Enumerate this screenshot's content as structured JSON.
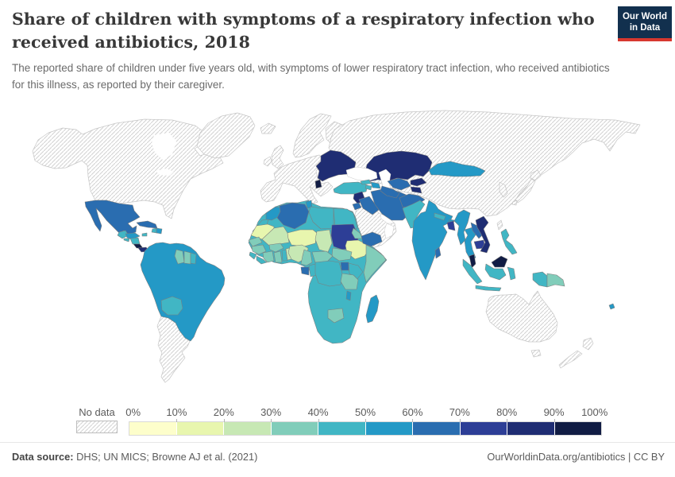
{
  "header": {
    "title": "Share of children with symptoms of a respiratory infection who received antibiotics, 2018",
    "subtitle": "The reported share of children under five years old, with symptoms of lower respiratory tract infection, who received antibiotics for this illness, as reported by their caregiver.",
    "logo_line1": "Our World",
    "logo_line2": "in Data"
  },
  "legend": {
    "no_data_label": "No data",
    "tick_labels": [
      "0%",
      "10%",
      "20%",
      "30%",
      "40%",
      "50%",
      "60%",
      "70%",
      "80%",
      "90%",
      "100%"
    ]
  },
  "footer": {
    "source_label": "Data source:",
    "source_text": " DHS; UN MICS; Browne AJ et al. (2021)",
    "attribution": "OurWorldinData.org/antibiotics | CC BY"
  },
  "chart_data": {
    "type": "choropleth_map",
    "title": "Share of children with symptoms of a respiratory infection who received antibiotics",
    "year": 2018,
    "unit": "%",
    "legend_position": "bottom",
    "scale": {
      "min": 0,
      "max": 100,
      "step": 10,
      "bins": [
        {
          "label": "0-10%",
          "color": "#fdfecb"
        },
        {
          "label": "10-20%",
          "color": "#e8f6ae"
        },
        {
          "label": "20-30%",
          "color": "#c7e8b4"
        },
        {
          "label": "30-40%",
          "color": "#81cdba"
        },
        {
          "label": "40-50%",
          "color": "#41b6c4"
        },
        {
          "label": "50-60%",
          "color": "#2499c6"
        },
        {
          "label": "60-70%",
          "color": "#2a6db0"
        },
        {
          "label": "70-80%",
          "color": "#2d3e96"
        },
        {
          "label": "80-90%",
          "color": "#1f2d73"
        },
        {
          "label": "90-100%",
          "color": "#111c44"
        }
      ],
      "no_data_color": "hatch"
    },
    "country_bands": {
      "Mexico": "60-70%",
      "Guatemala": "40-50%",
      "Belize": "40-50%",
      "Honduras": "50-60%",
      "El Salvador": "40-50%",
      "Nicaragua": "40-50%",
      "Costa Rica": "90-100%",
      "Panama": "80-90%",
      "Cuba": "60-70%",
      "Jamaica": "40-50%",
      "Haiti": "40-50%",
      "Dominican Republic": "50-60%",
      "Colombia": "50-60%",
      "Venezuela": "50-60%",
      "Ecuador": "50-60%",
      "Peru": "50-60%",
      "Brazil": "50-60%",
      "Bolivia": "40-50%",
      "Paraguay": "50-60%",
      "Uruguay": "50-60%",
      "Guyana": "30-40%",
      "Suriname": "30-40%",
      "French Guiana": "40-50%",
      "Morocco": "50-60%",
      "Western Sahara": "40-50%",
      "Algeria": "60-70%",
      "Tunisia": "50-60%",
      "Libya": "40-50%",
      "Egypt": "40-50%",
      "Mauritania": "10-20%",
      "Mali": "20-30%",
      "Niger": "10-20%",
      "Chad": "20-30%",
      "Sudan": "70-80%",
      "Eritrea": "30-40%",
      "Ethiopia": "10-20%",
      "Somalia": "30-40%",
      "South Sudan": "30-40%",
      "Senegal": "30-40%",
      "Guinea": "30-40%",
      "Sierra Leone": "40-50%",
      "Liberia": "40-50%",
      "Cote d'Ivoire": "30-40%",
      "Burkina Faso": "30-40%",
      "Ghana": "30-40%",
      "Togo": "40-50%",
      "Benin": "20-30%",
      "Nigeria": "20-30%",
      "Cameroon": "30-40%",
      "Central African Republic": "30-40%",
      "Gabon": "60-70%",
      "Congo": "40-50%",
      "DR Congo": "40-50%",
      "Uganda": "60-70%",
      "Kenya": "40-50%",
      "Tanzania": "30-40%",
      "Malawi": "50-60%",
      "Zambia": "40-50%",
      "Angola": "40-50%",
      "Mozambique": "40-50%",
      "Zimbabwe": "40-50%",
      "Botswana": "30-40%",
      "Namibia": "40-50%",
      "South Africa": "40-50%",
      "Madagascar": "50-60%",
      "Turkey": "40-50%",
      "Syria": "80-90%",
      "Jordan": "60-70%",
      "Iraq": "60-70%",
      "Iran": "60-70%",
      "Yemen": "60-70%",
      "Georgia": "40-50%",
      "Azerbaijan": "50-60%",
      "Armenia": "40-50%",
      "Ukraine": "80-90%",
      "Belarus": "80-90%",
      "Moldova": "80-90%",
      "Romania": "80-90%",
      "Serbia": "80-90%",
      "Albania": "90-100%",
      "Kazakhstan": "80-90%",
      "Uzbekistan": "60-70%",
      "Turkmenistan": "60-70%",
      "Kyrgyzstan": "80-90%",
      "Tajikistan": "80-90%",
      "Afghanistan": "60-70%",
      "Pakistan": "40-50%",
      "India": "50-60%",
      "Nepal": "40-50%",
      "Bhutan": "50-60%",
      "Bangladesh": "70-80%",
      "Sri Lanka": "60-70%",
      "Myanmar": "50-60%",
      "Thailand": "50-60%",
      "Laos": "60-70%",
      "Cambodia": "70-80%",
      "Vietnam": "80-90%",
      "Malaysia": "90-100%",
      "Indonesia": "40-50%",
      "Philippines": "40-50%",
      "Papua New Guinea": "30-40%",
      "Mongolia": "50-60%",
      "Fiji": "50-60%"
    },
    "no_data_regions": [
      "United States",
      "Canada",
      "Greenland",
      "Iceland",
      "United Kingdom",
      "Ireland",
      "Norway",
      "Sweden",
      "Finland",
      "Western & Central Europe",
      "Russia",
      "China",
      "Saudi Arabia",
      "Oman",
      "Japan",
      "South Korea",
      "Taiwan",
      "Australia",
      "New Zealand",
      "Argentina",
      "Chile"
    ]
  }
}
